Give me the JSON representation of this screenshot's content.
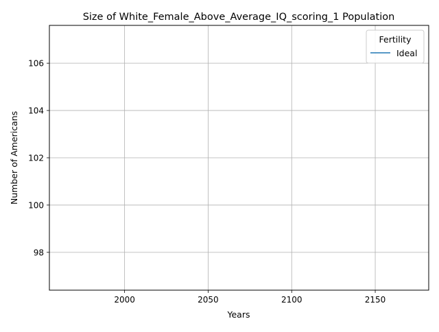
{
  "chart_data": {
    "type": "line",
    "title": "Size of White_Female_Above_Average_IQ_scoring_1 Population",
    "xlabel": "Years",
    "ylabel": "Number of Americans",
    "xlim": [
      1955,
      2182
    ],
    "ylim": [
      96.4,
      107.6
    ],
    "xticks": [
      2000,
      2050,
      2100,
      2150
    ],
    "yticks": [
      98,
      100,
      102,
      104,
      106
    ],
    "grid": true,
    "legend": {
      "title": "Fertility",
      "placement": "top-right"
    },
    "series": [
      {
        "name": "Ideal",
        "color": "#1f77b4",
        "x": [],
        "y": []
      }
    ]
  }
}
